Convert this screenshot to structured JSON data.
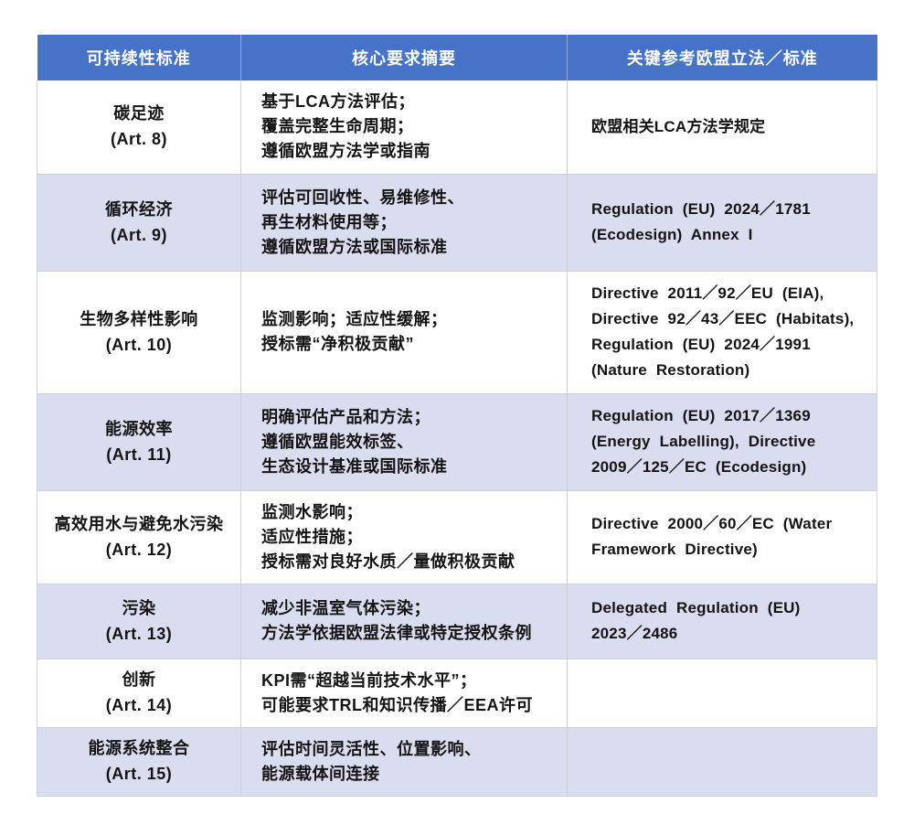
{
  "colors": {
    "header_bg": "#4673C7",
    "header_text": "#FFFFFF",
    "row_stripe_bg": "#D9DDEF",
    "row_plain_bg": "#FFFFFF",
    "cell_border": "#CBD0DC",
    "body_text": "#141414"
  },
  "table": {
    "header": {
      "criterion": "可持续性标准",
      "summary": "核心要求摘要",
      "legislation": "关键参考欧盟立法／标准"
    },
    "rows": [
      {
        "name": "碳足迹",
        "art": "(Art. 8)",
        "summary": "基于LCA方法评估；\n覆盖完整生命周期；\n遵循欧盟方法学或指南",
        "legislation": "欧盟相关LCA方法学规定"
      },
      {
        "name": "循环经济",
        "art": "(Art. 9)",
        "summary": "评估可回收性、易维修性、\n再生材料使用等；\n遵循欧盟方法或国际标准",
        "legislation": "Regulation (EU) 2024／1781\n(Ecodesign) Annex I"
      },
      {
        "name": "生物多样性影响",
        "art": "(Art. 10)",
        "summary": "监测影响；适应性缓解；\n授标需“净积极贡献”",
        "legislation": "Directive 2011／92／EU (EIA),\nDirective 92／43／EEC (Habitats),\nRegulation (EU) 2024／1991\n(Nature Restoration)"
      },
      {
        "name": "能源效率",
        "art": "(Art. 11)",
        "summary": "明确评估产品和方法；\n遵循欧盟能效标签、\n生态设计基准或国际标准",
        "legislation": "Regulation (EU) 2017／1369\n(Energy Labelling), Directive\n2009／125／EC (Ecodesign)"
      },
      {
        "name": "高效用水与避免水污染",
        "art": "(Art. 12)",
        "summary": "监测水影响；\n适应性措施；\n授标需对良好水质／量做积极贡献",
        "legislation": "Directive 2000／60／EC (Water\nFramework Directive)"
      },
      {
        "name": "污染",
        "art": "(Art. 13)",
        "summary": "减少非温室气体污染；\n方法学依据欧盟法律或特定授权条例",
        "legislation": "Delegated Regulation (EU)\n2023／2486"
      },
      {
        "name": "创新",
        "art": "(Art. 14)",
        "summary": "KPI需“超越当前技术水平”；\n可能要求TRL和知识传播／EEA许可",
        "legislation": ""
      },
      {
        "name": "能源系统整合",
        "art": "(Art. 15)",
        "summary": "评估时间灵活性、位置影响、\n能源载体间连接",
        "legislation": ""
      }
    ]
  }
}
